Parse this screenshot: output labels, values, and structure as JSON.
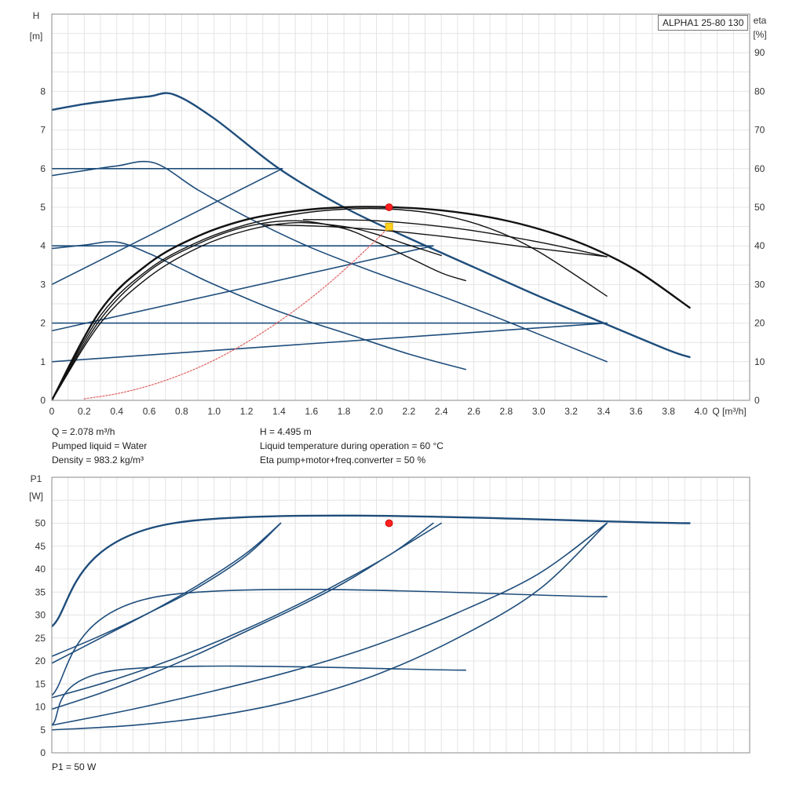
{
  "chart_data": [
    {
      "type": "line",
      "title": "ALPHA1 25-80 130",
      "xlabel": "Q",
      "xunit": "[m³/h]",
      "ylabel": "H",
      "yunit": "[m]",
      "y2label": "eta",
      "y2unit": "[%]",
      "xlim": [
        0,
        4.3
      ],
      "ylim": [
        0,
        10
      ],
      "y2lim": [
        0,
        100
      ],
      "xticks": [
        "0",
        "0.2",
        "0.4",
        "0.6",
        "0.8",
        "1.0",
        "1.2",
        "1.4",
        "1.6",
        "1.8",
        "2.0",
        "2.2",
        "2.4",
        "2.6",
        "2.8",
        "3.0",
        "3.2",
        "3.4",
        "3.6",
        "3.8",
        "4.0"
      ],
      "yticks": [
        "0",
        "1",
        "2",
        "3",
        "4",
        "5",
        "6",
        "7",
        "8"
      ],
      "y2ticks": [
        "0",
        "10",
        "20",
        "30",
        "40",
        "50",
        "60",
        "70",
        "80",
        "90"
      ],
      "grid": true,
      "colors": {
        "pump": "#1e4d7b",
        "efficiency": "#111111",
        "system": "#e06060",
        "duty_point": "#ff2020",
        "operating_point": "#ffd21e"
      },
      "series": [
        {
          "group": "pump",
          "width": 2.4,
          "x": [
            0,
            0.2,
            0.4,
            0.6,
            0.75,
            1.0,
            1.4,
            1.8,
            2.2,
            2.6,
            3.0,
            3.4,
            3.8,
            3.93
          ],
          "y": [
            7.52,
            7.67,
            7.78,
            7.87,
            7.92,
            7.3,
            6.0,
            5.0,
            4.2,
            3.45,
            2.7,
            2.0,
            1.3,
            1.12
          ]
        },
        {
          "group": "pump",
          "width": 1.6,
          "x": [
            0,
            0.2,
            0.4,
            0.63,
            0.9,
            1.2,
            1.6,
            2.0,
            2.4,
            2.8,
            3.42
          ],
          "y": [
            5.82,
            5.95,
            6.07,
            6.15,
            5.45,
            4.75,
            3.95,
            3.3,
            2.7,
            2.05,
            1.0
          ]
        },
        {
          "group": "pump",
          "width": 1.6,
          "x": [
            0,
            0.2,
            0.4,
            0.6,
            0.8,
            1.0,
            1.4,
            1.8,
            2.2,
            2.55
          ],
          "y": [
            3.93,
            4.02,
            4.1,
            3.8,
            3.4,
            3.0,
            2.3,
            1.75,
            1.2,
            0.8
          ]
        },
        {
          "group": "pump",
          "width": 1.6,
          "x": [
            0,
            1.42
          ],
          "y": [
            6.0,
            6.0
          ]
        },
        {
          "group": "pump",
          "width": 1.6,
          "x": [
            0,
            2.35
          ],
          "y": [
            4.0,
            4.0
          ]
        },
        {
          "group": "pump",
          "width": 1.6,
          "x": [
            0,
            3.42
          ],
          "y": [
            2.0,
            2.0
          ]
        },
        {
          "group": "pump",
          "width": 1.6,
          "x": [
            0,
            1.42
          ],
          "y": [
            3.0,
            6.0
          ]
        },
        {
          "group": "pump",
          "width": 1.6,
          "x": [
            0,
            2.35
          ],
          "y": [
            1.8,
            4.0
          ]
        },
        {
          "group": "pump",
          "width": 1.6,
          "x": [
            0,
            3.42
          ],
          "y": [
            1.0,
            2.0
          ]
        },
        {
          "group": "efficiency",
          "width": 2.4,
          "x": [
            0,
            0.3,
            0.6,
            0.9,
            1.2,
            1.5,
            1.8,
            2.1,
            2.4,
            2.7,
            3.0,
            3.3,
            3.6,
            3.93
          ],
          "y": [
            0,
            2.33,
            3.55,
            4.25,
            4.68,
            4.9,
            5.0,
            5.0,
            4.92,
            4.74,
            4.44,
            4.0,
            3.37,
            2.4
          ]
        },
        {
          "group": "efficiency",
          "width": 1.4,
          "x": [
            0,
            0.3,
            0.6,
            0.9,
            1.2,
            1.5,
            1.8,
            2.1,
            2.4,
            2.7,
            3.0,
            3.42
          ],
          "y": [
            0,
            2.2,
            3.4,
            4.1,
            4.55,
            4.82,
            4.95,
            4.95,
            4.8,
            4.45,
            3.85,
            2.7
          ]
        },
        {
          "group": "efficiency",
          "width": 1.4,
          "x": [
            0,
            0.3,
            0.6,
            0.9,
            1.2,
            1.5,
            1.8,
            2.0,
            2.2,
            2.4,
            2.55
          ],
          "y": [
            0,
            2.1,
            3.35,
            4.05,
            4.5,
            4.65,
            4.45,
            4.1,
            3.7,
            3.3,
            3.1
          ]
        },
        {
          "group": "efficiency",
          "width": 1.4,
          "x": [
            0,
            0.3,
            0.6,
            0.9,
            1.2,
            1.5,
            1.8,
            2.0,
            2.2,
            2.4
          ],
          "y": [
            0,
            2.0,
            3.2,
            3.95,
            4.4,
            4.6,
            4.5,
            4.3,
            4.02,
            3.75
          ]
        },
        {
          "group": "efficiency",
          "width": 1.4,
          "x": [
            1.55,
            2.0,
            2.5,
            3.0,
            3.42
          ],
          "y": [
            4.68,
            4.65,
            4.45,
            4.1,
            3.72
          ]
        },
        {
          "group": "efficiency",
          "width": 1.4,
          "x": [
            1.3,
            1.7,
            2.1,
            2.5,
            2.9,
            3.42
          ],
          "y": [
            4.55,
            4.5,
            4.38,
            4.2,
            3.98,
            3.72
          ]
        },
        {
          "group": "system",
          "width": 1.2,
          "dashed": true,
          "x": [
            0.2,
            0.4,
            0.6,
            0.8,
            1.0,
            1.2,
            1.4,
            1.6,
            1.8,
            2.0,
            2.078
          ],
          "y": [
            0.04,
            0.17,
            0.38,
            0.67,
            1.04,
            1.5,
            2.04,
            2.66,
            3.37,
            4.16,
            4.495
          ]
        }
      ],
      "points": [
        {
          "group": "duty_point",
          "x": 2.078,
          "y": 5.0
        },
        {
          "group": "operating_point",
          "x": 2.078,
          "y": 4.495
        }
      ]
    },
    {
      "type": "line",
      "ylabel": "P1",
      "yunit": "[W]",
      "xlim": [
        0,
        4.3
      ],
      "ylim": [
        0,
        60
      ],
      "yticks": [
        "0",
        "5",
        "10",
        "15",
        "20",
        "25",
        "30",
        "35",
        "40",
        "45",
        "50"
      ],
      "grid": true,
      "colors": {
        "pump": "#1e4d7b",
        "duty_point": "#ff2020"
      },
      "series": [
        {
          "group": "pump",
          "width": 2.4,
          "x": [
            0,
            0.75,
            3.93
          ],
          "y": [
            27.5,
            50,
            50
          ]
        },
        {
          "group": "pump",
          "width": 1.6,
          "x": [
            0,
            0.3,
            0.6,
            0.9,
            1.2,
            1.41
          ],
          "y": [
            21.0,
            25.5,
            30.5,
            36.0,
            43.0,
            50
          ]
        },
        {
          "group": "pump",
          "width": 1.6,
          "x": [
            0,
            0.3,
            0.6,
            0.9,
            1.2,
            1.41
          ],
          "y": [
            19.5,
            25.0,
            30.5,
            36.5,
            43.5,
            50
          ]
        },
        {
          "group": "pump",
          "width": 1.6,
          "x": [
            0,
            0.3,
            0.6,
            0.9,
            1.2,
            1.5,
            1.8,
            2.1,
            2.35
          ],
          "y": [
            12.0,
            15.0,
            18.5,
            22.5,
            27.0,
            32.0,
            37.5,
            43.5,
            50
          ]
        },
        {
          "group": "pump",
          "width": 1.6,
          "x": [
            0,
            0.3,
            0.6,
            0.9,
            1.2,
            1.5,
            1.8,
            2.1,
            2.4
          ],
          "y": [
            9.5,
            13.0,
            17.0,
            21.5,
            26.5,
            31.5,
            37.0,
            43.5,
            50
          ]
        },
        {
          "group": "pump",
          "width": 1.6,
          "x": [
            0,
            0.5,
            1.0,
            1.5,
            2.0,
            2.5,
            3.0,
            3.42
          ],
          "y": [
            6.0,
            9.5,
            13.5,
            18.0,
            23.5,
            30.5,
            39.0,
            50
          ]
        },
        {
          "group": "pump",
          "width": 1.6,
          "x": [
            0,
            0.5,
            1.0,
            1.5,
            2.0,
            2.5,
            3.0,
            3.42
          ],
          "y": [
            5.0,
            6.0,
            8.0,
            11.5,
            17.0,
            25.0,
            35.5,
            50
          ]
        },
        {
          "group": "pump",
          "width": 1.6,
          "x": [
            0,
            0.65,
            3.42
          ],
          "y": [
            12.5,
            34.0,
            34.0
          ]
        },
        {
          "group": "pump",
          "width": 1.6,
          "x": [
            0,
            0.4,
            2.55
          ],
          "y": [
            6.0,
            18.0,
            18.0
          ]
        }
      ],
      "points": [
        {
          "group": "duty_point",
          "x": 2.078,
          "y": 50
        }
      ]
    }
  ],
  "info": {
    "q": "Q = 2.078 m³/h",
    "h": "H = 4.495 m",
    "liquid": "Pumped liquid = Water",
    "temperature": "Liquid temperature during operation = 60 °C",
    "density": "Density = 983.2 kg/m³",
    "eta": "Eta pump+motor+freq.converter = 50 %"
  },
  "p1_footer": "P1 = 50 W"
}
